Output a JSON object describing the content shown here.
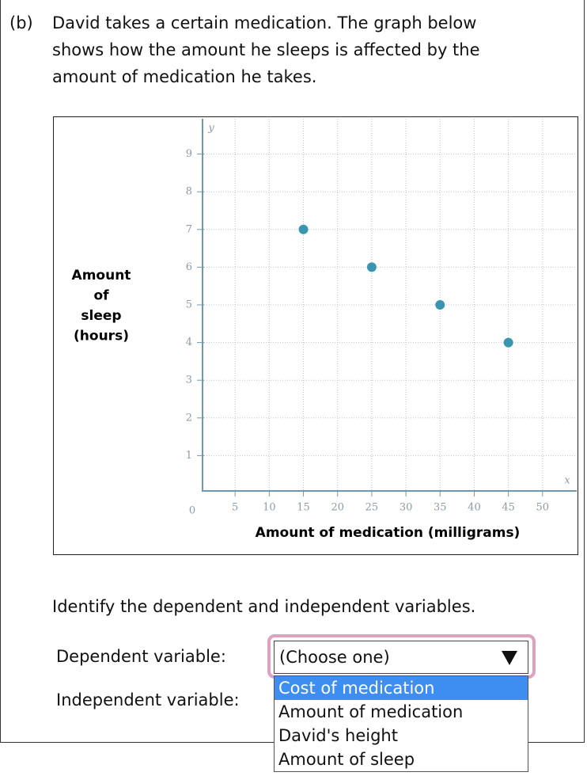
{
  "question": {
    "label": "(b)",
    "lines": [
      "David takes a certain medication. The graph below",
      "shows how the amount he sleeps is affected by the",
      "amount of medication he takes."
    ]
  },
  "chart_data": {
    "type": "scatter",
    "xlabel": "Amount of medication (milligrams)",
    "ylabel_lines": [
      "Amount",
      "of",
      "sleep",
      "(hours)"
    ],
    "x_axis_name": "x",
    "y_axis_name": "y",
    "origin_label": "0",
    "series": [
      {
        "color": "#3a96b0",
        "x": [
          15,
          25,
          35,
          45
        ],
        "values": [
          7,
          6,
          5,
          4
        ]
      }
    ],
    "xlim": [
      0,
      55
    ],
    "ylim": [
      0,
      10
    ],
    "xticks": [
      5,
      10,
      15,
      20,
      25,
      30,
      35,
      40,
      45,
      50
    ],
    "yticks": [
      1,
      2,
      3,
      4,
      5,
      6,
      7,
      8,
      9
    ],
    "grid": true
  },
  "prompt": "Identify the dependent and independent variables.",
  "dependent_label": "Dependent variable:",
  "independent_label": "Independent variable:",
  "select_placeholder": "(Choose one)",
  "options": [
    "Cost of medication",
    "Amount of medication",
    "David's height",
    "Amount of sleep"
  ]
}
